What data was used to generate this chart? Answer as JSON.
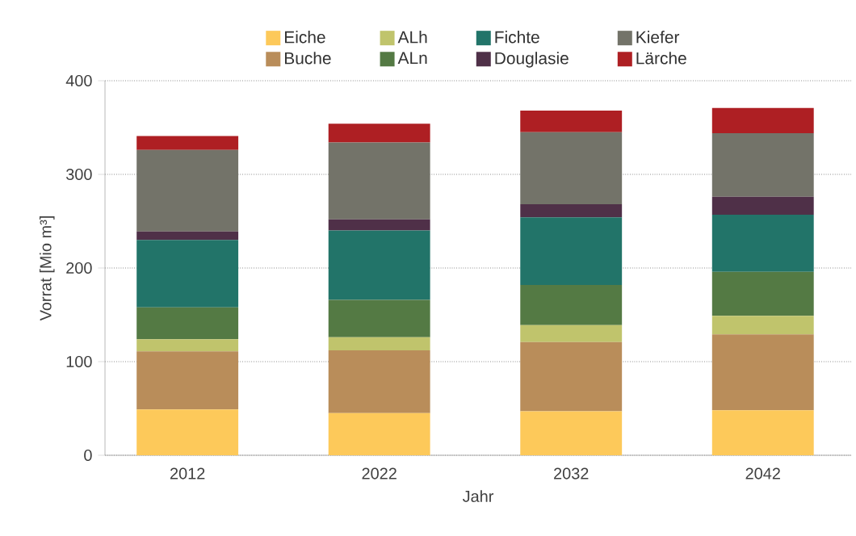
{
  "chart_data": {
    "type": "bar",
    "stacked": true,
    "xlabel": "Jahr",
    "ylabel": "Vorrat [Mio m³]",
    "categories": [
      "2012",
      "2022",
      "2032",
      "2042"
    ],
    "series": [
      {
        "name": "Eiche",
        "color": "#fdc95a",
        "values": [
          49,
          45,
          47,
          48
        ]
      },
      {
        "name": "Buche",
        "color": "#b98d5a",
        "values": [
          62,
          67,
          74,
          81
        ]
      },
      {
        "name": "ALh",
        "color": "#c0c46c",
        "values": [
          13,
          14,
          18,
          20
        ]
      },
      {
        "name": "ALn",
        "color": "#547a44",
        "values": [
          34,
          40,
          43,
          47
        ]
      },
      {
        "name": "Fichte",
        "color": "#227469",
        "values": [
          72,
          74,
          72,
          61
        ]
      },
      {
        "name": "Douglasie",
        "color": "#4f3048",
        "values": [
          9,
          12,
          14,
          19
        ]
      },
      {
        "name": "Kiefer",
        "color": "#737369",
        "values": [
          87,
          82,
          77,
          68
        ]
      },
      {
        "name": "Lärche",
        "color": "#ae1f23",
        "values": [
          15,
          20,
          23,
          27
        ]
      }
    ],
    "ylim": [
      0,
      400
    ],
    "yticks": [
      0,
      100,
      200,
      300,
      400
    ],
    "grid": "y",
    "legend": "top"
  }
}
